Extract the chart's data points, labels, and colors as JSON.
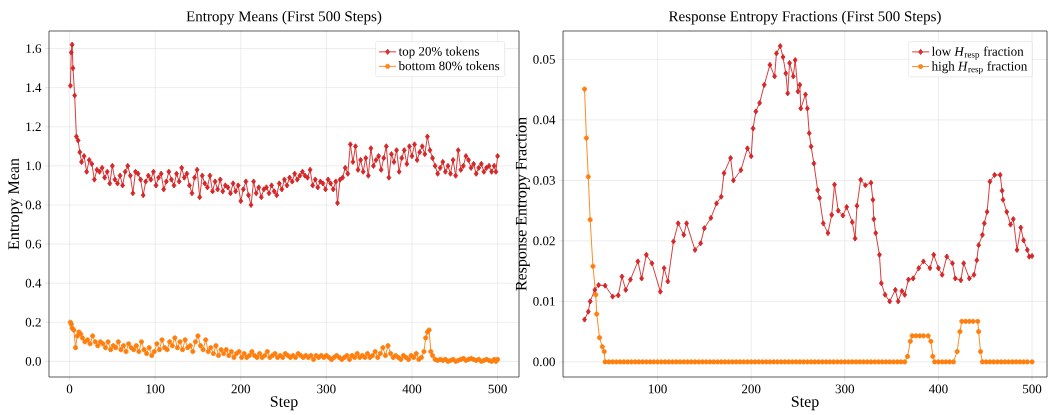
{
  "chart_data": [
    {
      "type": "line",
      "title": "Entropy Means (First 500 Steps)",
      "xlabel": "Step",
      "ylabel": "Entropy Mean",
      "xlim": [
        -24,
        525
      ],
      "ylim": [
        -0.08,
        1.69
      ],
      "xticks": [
        0,
        100,
        200,
        300,
        400,
        500
      ],
      "yticks": [
        {
          "value": 0,
          "label": "0.0"
        },
        {
          "value": 0.2,
          "label": "0.2"
        },
        {
          "value": 0.4,
          "label": "0.4"
        },
        {
          "value": 0.6,
          "label": "0.6"
        },
        {
          "value": 0.8,
          "label": "0.8"
        },
        {
          "value": 1.0,
          "label": "1.0"
        },
        {
          "value": 1.2,
          "label": "1.2"
        },
        {
          "value": 1.4,
          "label": "1.4"
        },
        {
          "value": 1.6,
          "label": "1.6"
        }
      ],
      "grid": true,
      "legend": "top right",
      "series": [
        {
          "name": "top 20% tokens",
          "color": "#d62728",
          "marker": "diamond",
          "x": [
            1,
            2,
            3,
            4,
            6,
            8,
            10,
            12,
            14,
            17,
            20,
            23,
            26,
            29,
            32,
            35,
            38,
            41,
            44,
            47,
            50,
            53,
            56,
            59,
            62,
            65,
            68,
            71,
            74,
            77,
            80,
            83,
            86,
            89,
            92,
            95,
            98,
            101,
            104,
            107,
            110,
            113,
            116,
            119,
            122,
            125,
            128,
            131,
            134,
            137,
            140,
            143,
            146,
            149,
            152,
            155,
            158,
            161,
            164,
            167,
            170,
            173,
            176,
            179,
            182,
            185,
            188,
            191,
            194,
            197,
            200,
            203,
            206,
            209,
            212,
            215,
            218,
            221,
            224,
            227,
            230,
            233,
            236,
            239,
            242,
            245,
            248,
            251,
            254,
            257,
            260,
            263,
            266,
            269,
            272,
            275,
            278,
            281,
            284,
            287,
            290,
            293,
            296,
            299,
            302,
            305,
            308,
            311,
            313,
            316,
            319,
            322,
            325,
            328,
            331,
            334,
            337,
            340,
            343,
            346,
            349,
            352,
            355,
            358,
            361,
            364,
            367,
            370,
            373,
            376,
            379,
            382,
            385,
            388,
            391,
            394,
            397,
            400,
            403,
            406,
            409,
            412,
            415,
            418,
            421,
            424,
            427,
            430,
            433,
            436,
            439,
            442,
            445,
            448,
            451,
            454,
            457,
            460,
            463,
            466,
            469,
            472,
            475,
            478,
            481,
            484,
            487,
            490,
            493,
            496,
            498,
            500
          ],
          "values": [
            1.41,
            1.58,
            1.62,
            1.5,
            1.36,
            1.15,
            1.13,
            1.07,
            1.02,
            1.05,
            0.97,
            1.03,
            1.01,
            0.93,
            0.98,
            0.97,
            0.99,
            0.94,
            0.97,
            0.91,
            1.0,
            0.93,
            0.91,
            0.95,
            0.9,
            0.97,
            1.0,
            0.95,
            0.86,
            0.97,
            0.96,
            0.93,
            0.85,
            0.92,
            0.95,
            0.93,
            0.97,
            0.9,
            0.94,
            0.96,
            0.88,
            0.92,
            0.97,
            0.93,
            0.9,
            0.96,
            0.92,
            0.99,
            0.94,
            0.96,
            0.9,
            0.86,
            0.94,
            0.98,
            0.84,
            0.95,
            0.91,
            0.89,
            0.95,
            0.87,
            0.92,
            0.88,
            0.93,
            0.87,
            0.9,
            0.89,
            0.86,
            0.91,
            0.87,
            0.9,
            0.82,
            0.88,
            0.92,
            0.85,
            0.8,
            0.92,
            0.86,
            0.89,
            0.84,
            0.88,
            0.89,
            0.86,
            0.9,
            0.87,
            0.85,
            0.91,
            0.88,
            0.93,
            0.9,
            0.94,
            0.92,
            0.96,
            0.93,
            0.95,
            0.97,
            0.95,
            0.94,
            0.98,
            0.9,
            0.93,
            0.89,
            0.92,
            0.91,
            0.88,
            0.93,
            0.91,
            0.88,
            0.92,
            0.81,
            0.93,
            0.94,
            0.99,
            0.96,
            1.11,
            1.02,
            1.1,
            0.98,
            1.03,
            0.97,
            1.04,
            0.95,
            1.09,
            1.0,
            1.03,
            1.05,
            0.98,
            1.04,
            1.1,
            0.94,
            1.06,
            1.02,
            1.08,
            0.97,
            1.04,
            1.08,
            1.01,
            1.1,
            1.05,
            1.11,
            1.03,
            1.07,
            1.1,
            1.06,
            1.15,
            1.08,
            1.04,
            1.0,
            0.96,
            0.99,
            1.02,
            0.97,
            1.0,
            0.96,
            1.03,
            0.95,
            1.08,
            0.98,
            1.0,
            1.05,
            1.03,
            0.99,
            1.01,
            0.96,
            0.99,
            1.01,
            0.97,
            0.99,
            1.0,
            0.97,
            1.0,
            0.97,
            1.05
          ]
        },
        {
          "name": "bottom 80% tokens",
          "color": "#ff7f0e",
          "marker": "circle",
          "x": [
            1,
            2,
            3,
            5,
            7,
            9,
            11,
            13,
            15,
            18,
            21,
            24,
            27,
            30,
            33,
            36,
            39,
            42,
            45,
            48,
            51,
            54,
            57,
            60,
            63,
            66,
            69,
            72,
            75,
            78,
            81,
            84,
            87,
            90,
            93,
            96,
            99,
            102,
            105,
            108,
            111,
            114,
            117,
            120,
            123,
            126,
            129,
            132,
            135,
            138,
            141,
            144,
            147,
            150,
            153,
            156,
            159,
            162,
            165,
            168,
            171,
            174,
            177,
            180,
            183,
            186,
            189,
            192,
            195,
            198,
            201,
            204,
            207,
            210,
            213,
            216,
            219,
            222,
            225,
            228,
            231,
            234,
            237,
            240,
            243,
            246,
            249,
            252,
            255,
            258,
            261,
            264,
            267,
            270,
            273,
            276,
            279,
            282,
            285,
            288,
            291,
            294,
            297,
            300,
            303,
            306,
            309,
            312,
            315,
            318,
            321,
            324,
            327,
            330,
            333,
            336,
            339,
            342,
            345,
            348,
            351,
            354,
            357,
            360,
            363,
            366,
            369,
            372,
            375,
            378,
            381,
            384,
            387,
            390,
            393,
            396,
            399,
            402,
            405,
            408,
            411,
            414,
            416,
            418,
            420,
            422,
            424,
            427,
            430,
            433,
            436,
            439,
            442,
            445,
            448,
            451,
            454,
            457,
            460,
            463,
            466,
            469,
            472,
            475,
            478,
            481,
            484,
            487,
            490,
            493,
            496,
            498,
            500
          ],
          "values": [
            0.2,
            0.19,
            0.17,
            0.16,
            0.07,
            0.13,
            0.15,
            0.14,
            0.12,
            0.1,
            0.11,
            0.09,
            0.13,
            0.1,
            0.08,
            0.1,
            0.09,
            0.07,
            0.1,
            0.06,
            0.08,
            0.07,
            0.1,
            0.06,
            0.08,
            0.05,
            0.09,
            0.07,
            0.06,
            0.08,
            0.05,
            0.1,
            0.06,
            0.04,
            0.07,
            0.03,
            0.05,
            0.09,
            0.06,
            0.11,
            0.07,
            0.06,
            0.1,
            0.08,
            0.12,
            0.07,
            0.1,
            0.06,
            0.11,
            0.07,
            0.08,
            0.05,
            0.1,
            0.13,
            0.08,
            0.06,
            0.11,
            0.05,
            0.07,
            0.04,
            0.08,
            0.03,
            0.06,
            0.04,
            0.06,
            0.03,
            0.05,
            0.02,
            0.04,
            0.05,
            0.02,
            0.04,
            0.02,
            0.03,
            0.05,
            0.03,
            0.02,
            0.04,
            0.02,
            0.03,
            0.05,
            0.02,
            0.03,
            0.04,
            0.02,
            0.03,
            0.02,
            0.04,
            0.03,
            0.02,
            0.03,
            0.02,
            0.04,
            0.03,
            0.02,
            0.03,
            0.02,
            0.03,
            0.01,
            0.03,
            0.02,
            0.03,
            0.02,
            0.03,
            0.02,
            0.01,
            0.02,
            0.03,
            0.02,
            0.01,
            0.02,
            0.03,
            0.01,
            0.03,
            0.02,
            0.04,
            0.02,
            0.03,
            0.02,
            0.04,
            0.02,
            0.03,
            0.05,
            0.02,
            0.04,
            0.07,
            0.03,
            0.08,
            0.04,
            0.02,
            0.03,
            0.02,
            0.01,
            0.03,
            0.02,
            0.01,
            0.03,
            0.02,
            0.04,
            0.01,
            0.02,
            0.05,
            0.12,
            0.15,
            0.16,
            0.05,
            0.03,
            0.01,
            0.005,
            0.01,
            0.005,
            0.01,
            0.0,
            0.005,
            0.01,
            0.0,
            0.005,
            0.01,
            0.015,
            0.005,
            0.01,
            0.015,
            0.01,
            0.005,
            0.01,
            0.0,
            0.005,
            0.01,
            0.005,
            0.0,
            0.01,
            0.0,
            0.01
          ]
        }
      ]
    },
    {
      "type": "line",
      "title": "Response Entropy Fractions (First 500 Steps)",
      "xlabel": "Step",
      "ylabel": "Response Entropy Fraction",
      "xlim": [
        -1,
        516
      ],
      "ylim": [
        -0.0025,
        0.0547
      ],
      "xticks": [
        {
          "value": 0,
          "label": null
        },
        100,
        200,
        300,
        400,
        500
      ],
      "yticks": [
        {
          "value": 0,
          "label": "0.00"
        },
        {
          "value": 0.01,
          "label": "0.01"
        },
        {
          "value": 0.02,
          "label": "0.02"
        },
        {
          "value": 0.03,
          "label": "0.03"
        },
        {
          "value": 0.04,
          "label": "0.04"
        },
        {
          "value": 0.05,
          "label": "0.05"
        }
      ],
      "grid": true,
      "legend": "top right",
      "series": [
        {
          "name": "low *H*$_{resp}$ fraction",
          "color": "#d62728",
          "marker": "diamond",
          "x": [
            22,
            26,
            28,
            33,
            37,
            44,
            52,
            58,
            62,
            66,
            71,
            79,
            83,
            88,
            94,
            103,
            107,
            111,
            117,
            122,
            128,
            131,
            140,
            146,
            150,
            157,
            163,
            168,
            171,
            178,
            181,
            189,
            196,
            200,
            202,
            205,
            209,
            214,
            220,
            225,
            227,
            231,
            234,
            237,
            239,
            241,
            245,
            247,
            250,
            252,
            253,
            258,
            260,
            262,
            264,
            267,
            271,
            273,
            277,
            282,
            286,
            289,
            293,
            298,
            302,
            308,
            311,
            313,
            317,
            322,
            328,
            330,
            331,
            333,
            337,
            339,
            343,
            348,
            354,
            357,
            361,
            364,
            368,
            373,
            379,
            384,
            391,
            395,
            400,
            404,
            409,
            415,
            418,
            424,
            427,
            433,
            438,
            441,
            443,
            447,
            449,
            452,
            455,
            460,
            466,
            468,
            469,
            473,
            477,
            480,
            484,
            488,
            491,
            495,
            497,
            500
          ],
          "values": [
            0.007,
            0.0083,
            0.01,
            0.0119,
            0.0127,
            0.0126,
            0.0108,
            0.011,
            0.0141,
            0.0119,
            0.0136,
            0.0166,
            0.0138,
            0.0177,
            0.0163,
            0.0116,
            0.0155,
            0.0133,
            0.0199,
            0.0229,
            0.021,
            0.0229,
            0.0185,
            0.0196,
            0.0221,
            0.0238,
            0.0262,
            0.0273,
            0.0312,
            0.0337,
            0.03,
            0.0317,
            0.0353,
            0.034,
            0.0386,
            0.0414,
            0.0428,
            0.0458,
            0.0491,
            0.0472,
            0.051,
            0.0522,
            0.0504,
            0.0477,
            0.0444,
            0.0494,
            0.0472,
            0.0499,
            0.0447,
            0.0458,
            0.0419,
            0.0442,
            0.0419,
            0.0378,
            0.0356,
            0.0328,
            0.0284,
            0.0271,
            0.0229,
            0.0213,
            0.0243,
            0.0293,
            0.025,
            0.0242,
            0.0256,
            0.0231,
            0.0204,
            0.0258,
            0.0301,
            0.0292,
            0.0296,
            0.0268,
            0.0236,
            0.0213,
            0.0177,
            0.013,
            0.0111,
            0.01,
            0.0119,
            0.01,
            0.0117,
            0.0111,
            0.0136,
            0.0138,
            0.0155,
            0.0166,
            0.0155,
            0.0177,
            0.0155,
            0.0144,
            0.0174,
            0.0163,
            0.0138,
            0.0135,
            0.0163,
            0.0138,
            0.0144,
            0.0168,
            0.0193,
            0.021,
            0.0229,
            0.0248,
            0.0298,
            0.0309,
            0.0309,
            0.0283,
            0.0268,
            0.0248,
            0.0227,
            0.0236,
            0.0185,
            0.0222,
            0.0201,
            0.0185,
            0.0174,
            0.0175
          ]
        },
        {
          "name": "high *H*$_{resp}$ fraction",
          "color": "#ff7f0e",
          "marker": "circle",
          "x": [
            22,
            24,
            26,
            28,
            31,
            34,
            35,
            38,
            41,
            43,
            44,
            48,
            52,
            56,
            60,
            64,
            68,
            72,
            76,
            80,
            84,
            88,
            92,
            96,
            100,
            104,
            108,
            112,
            116,
            120,
            124,
            128,
            132,
            136,
            140,
            144,
            148,
            152,
            156,
            160,
            164,
            168,
            172,
            176,
            180,
            184,
            188,
            192,
            196,
            200,
            204,
            208,
            212,
            216,
            220,
            224,
            228,
            232,
            236,
            240,
            244,
            248,
            252,
            256,
            260,
            264,
            268,
            272,
            276,
            280,
            284,
            288,
            292,
            296,
            300,
            304,
            308,
            312,
            316,
            320,
            324,
            328,
            332,
            336,
            340,
            344,
            348,
            352,
            356,
            360,
            364,
            367,
            370,
            372,
            376,
            380,
            384,
            389,
            392,
            394,
            396,
            400,
            404,
            408,
            412,
            416,
            420,
            423,
            425,
            429,
            433,
            437,
            442,
            443,
            445,
            447,
            451,
            455,
            459,
            463,
            467,
            471,
            475,
            479,
            483,
            487,
            491,
            495,
            500
          ],
          "values": [
            0.0451,
            0.037,
            0.0306,
            0.0235,
            0.0158,
            0.0111,
            0.0079,
            0.004,
            0.0025,
            0.0017,
            0.0,
            0.0,
            0.0,
            0.0,
            0.0,
            0.0,
            0.0,
            0.0,
            0.0,
            0.0,
            0.0,
            0.0,
            0.0,
            0.0,
            0.0,
            0.0,
            0.0,
            0.0,
            0.0,
            0.0,
            0.0,
            0.0,
            0.0,
            0.0,
            0.0,
            0.0,
            0.0,
            0.0,
            0.0,
            0.0,
            0.0,
            0.0,
            0.0,
            0.0,
            0.0,
            0.0,
            0.0,
            0.0,
            0.0,
            0.0,
            0.0,
            0.0,
            0.0,
            0.0,
            0.0,
            0.0,
            0.0,
            0.0,
            0.0,
            0.0,
            0.0,
            0.0,
            0.0,
            0.0,
            0.0,
            0.0,
            0.0,
            0.0,
            0.0,
            0.0,
            0.0,
            0.0,
            0.0,
            0.0,
            0.0,
            0.0,
            0.0,
            0.0,
            0.0,
            0.0,
            0.0,
            0.0,
            0.0,
            0.0,
            0.0,
            0.0,
            0.0,
            0.0,
            0.0,
            0.0,
            0.0,
            0.0009,
            0.0034,
            0.0043,
            0.0043,
            0.0043,
            0.0043,
            0.0043,
            0.0034,
            0.0009,
            0.0,
            0.0,
            0.0,
            0.0,
            0.0,
            0.0,
            0.0017,
            0.005,
            0.0067,
            0.0067,
            0.0067,
            0.0067,
            0.0067,
            0.005,
            0.0017,
            0.0,
            0.0,
            0.0,
            0.0,
            0.0,
            0.0,
            0.0,
            0.0,
            0.0,
            0.0,
            0.0,
            0.0,
            0.0,
            0.0
          ]
        }
      ]
    }
  ]
}
